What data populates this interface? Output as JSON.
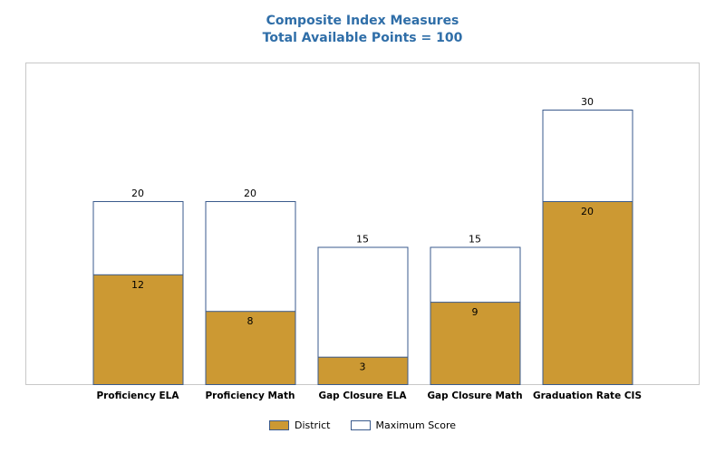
{
  "chart_data": {
    "type": "bar",
    "title": "Composite Index Measures",
    "subtitle": "Total Available Points = 100",
    "categories": [
      "Proficiency ELA",
      "Proficiency Math",
      "Gap Closure ELA",
      "Gap Closure Math",
      "Graduation Rate CIS"
    ],
    "series": [
      {
        "name": "District",
        "values": [
          12,
          8,
          3,
          9,
          20
        ],
        "color": "#cc9933"
      },
      {
        "name": "Maximum Score",
        "values": [
          20,
          20,
          15,
          15,
          30
        ],
        "color": "#ffffff"
      }
    ],
    "ylim": [
      0,
      35
    ],
    "grid": false,
    "legend_position": "bottom",
    "outline_color": "#3a5a8c"
  }
}
